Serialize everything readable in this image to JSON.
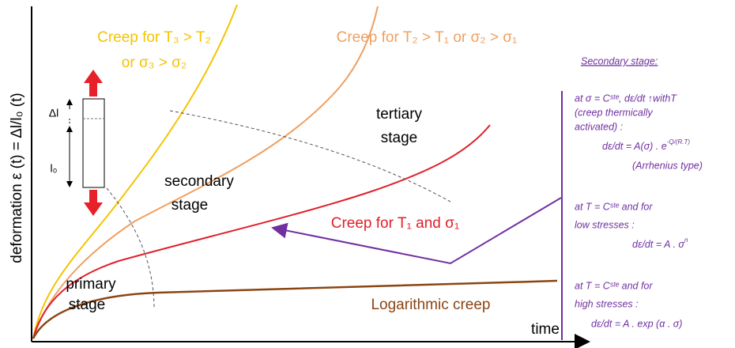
{
  "axes": {
    "y_label": "deformation ε (t) = Δl/l₀ (t)",
    "x_label": "time"
  },
  "curves": {
    "yellow": [
      "Creep for T₃ > T₂",
      "or σ₃ > σ₂"
    ],
    "orange": "Creep for T₂ > T₁ or σ₂ > σ₁",
    "red": "Creep for T₁ and σ₁",
    "brown": "Logarithmic creep"
  },
  "stages": {
    "primary": [
      "primary",
      "stage"
    ],
    "secondary": [
      "secondary",
      "stage"
    ],
    "tertiary": [
      "tertiary",
      "stage"
    ]
  },
  "specimen": {
    "delta": "Δl",
    "length": "l₀"
  },
  "notes": {
    "title": "Secondary stage:",
    "block1": [
      "at σ = Cˢᵗᵉ, dε/dt ↑withT",
      "(creep thermically",
      "activated) :",
      "dε/dt = A(σ) . e",
      "-Q/(R.T)",
      "(Arrhenius type)"
    ],
    "block2": [
      "at T = Cˢᵗᵉ and for",
      "low stresses :",
      "dε/dt = A . σ",
      "n"
    ],
    "block3": [
      "at T = Cˢᵗᵉ and for",
      "high stresses :",
      "dε/dt = A . exp (α . σ)"
    ]
  }
}
